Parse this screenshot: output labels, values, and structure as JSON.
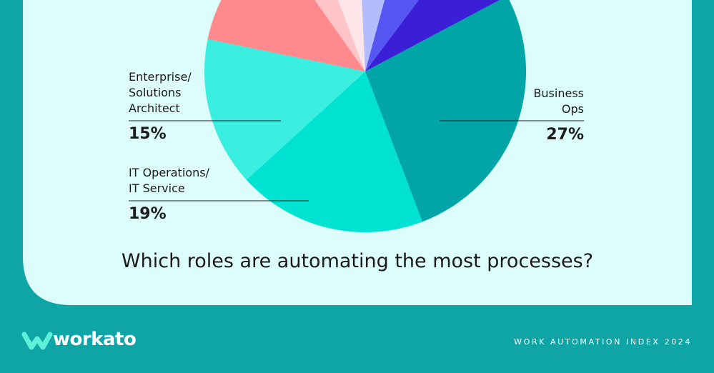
{
  "chart_data": {
    "type": "pie",
    "title": "Which roles are automating the most processes?",
    "categories": [
      "Business\nOps",
      "IT Operations/\nIT Service",
      "Enterprise/\nSolutions\nArchitect",
      null,
      null,
      null,
      null,
      null,
      null
    ],
    "values": [
      27,
      19,
      15,
      12,
      4,
      5,
      5,
      6,
      7
    ],
    "value_labels": [
      "27%",
      "19%",
      "15%",
      null,
      null,
      null,
      null,
      null,
      null
    ],
    "colors": [
      "#00a5a8",
      "#00e2d2",
      "#3aeee0",
      "#ff8a8d",
      "#ffc4c8",
      "#ffe6ea",
      "#b3bdfd",
      "#5657f2",
      "#3a1fd6"
    ]
  },
  "footer": {
    "brand": "workato",
    "report": "WORK AUTOMATION INDEX 2024"
  }
}
